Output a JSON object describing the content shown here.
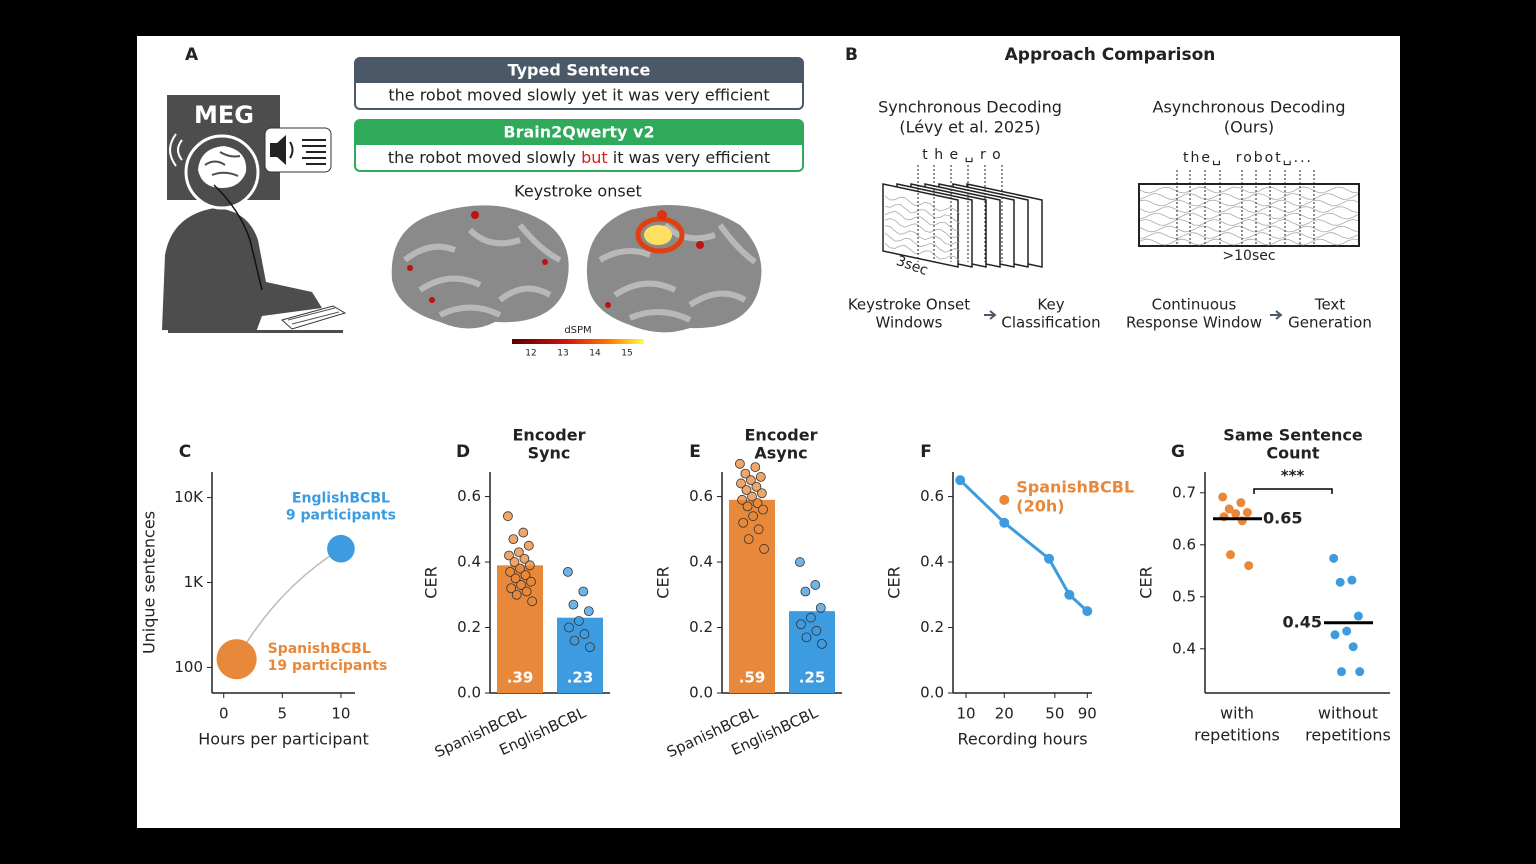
{
  "panel_a": {
    "label": "A",
    "meg_label": "MEG",
    "typed": {
      "title": "Typed Sentence",
      "text": "the robot moved slowly yet it was very efficient"
    },
    "decoded": {
      "title": "Brain2Qwerty v2",
      "text_before": "the robot moved slowly ",
      "error": "but",
      "text_after": " it was very efficient"
    },
    "brain_title": "Keystroke onset",
    "colorbar": {
      "label": "dSPM",
      "ticks": [
        12,
        13,
        14,
        15
      ]
    }
  },
  "panel_b": {
    "label": "B",
    "title": "Approach Comparison",
    "sync": {
      "title": "Synchronous Decoding",
      "subtitle": "(Lévy et al. 2025)",
      "keys": "t h e ␣ r o",
      "window": "3sec",
      "steps": [
        [
          "Keystroke Onset",
          "Windows"
        ],
        [
          "Key",
          "Classification"
        ]
      ]
    },
    "async": {
      "title": "Asynchronous Decoding",
      "subtitle": "(Ours)",
      "keys": "the␣  robot␣...",
      "window": ">10sec",
      "steps": [
        [
          "Continuous",
          "Response Window"
        ],
        [
          "Text",
          "Generation"
        ]
      ]
    }
  },
  "chart_data": [
    {
      "type": "scatter",
      "panel": "C",
      "xlabel": "Hours per participant",
      "ylabel": "Unique sentences",
      "yscale": "log",
      "xlim": [
        -1,
        11.2
      ],
      "ylim": [
        50,
        20000
      ],
      "xticks": [
        0,
        5,
        10
      ],
      "yticks": [
        100,
        {
          "value": 1000,
          "label": "1K"
        },
        {
          "value": 10000,
          "label": "10K"
        }
      ],
      "series": [
        {
          "name": "SpanishBCBL",
          "label": "19 participants",
          "color": "#e8883a",
          "x": [
            1.1
          ],
          "values": [
            125
          ],
          "sizes": [
            19
          ]
        },
        {
          "name": "EnglishBCBL",
          "label": "9 participants",
          "color": "#3d9be0",
          "x": [
            10
          ],
          "values": [
            2500
          ],
          "sizes": [
            9
          ]
        }
      ]
    },
    {
      "type": "bar",
      "panel": "D",
      "title": "Encoder",
      "subtitle": "Sync",
      "ylabel": "CER",
      "ylim": [
        0,
        0.675
      ],
      "yticks": [
        {
          "value": 0,
          "label": "0.0"
        },
        0.2,
        0.4,
        0.6
      ],
      "categories": [
        "SpanishBCBL",
        "EnglishBCBL"
      ],
      "values": [
        0.39,
        0.23
      ],
      "value_labels": [
        ".39",
        ".23"
      ],
      "colors": [
        "#e8883a",
        "#3d9be0"
      ],
      "points": [
        [
          0.54,
          0.49,
          0.47,
          0.45,
          0.43,
          0.42,
          0.41,
          0.4,
          0.39,
          0.38,
          0.37,
          0.36,
          0.35,
          0.34,
          0.33,
          0.32,
          0.31,
          0.3,
          0.28
        ],
        [
          0.37,
          0.31,
          0.27,
          0.25,
          0.22,
          0.2,
          0.18,
          0.16,
          0.14
        ]
      ]
    },
    {
      "type": "bar",
      "panel": "E",
      "title": "Encoder",
      "subtitle": "Async",
      "ylabel": "CER",
      "ylim": [
        0,
        0.675
      ],
      "yticks": [
        {
          "value": 0,
          "label": "0.0"
        },
        0.2,
        0.4,
        0.6
      ],
      "categories": [
        "SpanishBCBL",
        "EnglishBCBL"
      ],
      "values": [
        0.59,
        0.25
      ],
      "value_labels": [
        ".59",
        ".25"
      ],
      "colors": [
        "#e8883a",
        "#3d9be0"
      ],
      "points": [
        [
          0.7,
          0.69,
          0.67,
          0.66,
          0.65,
          0.64,
          0.63,
          0.62,
          0.61,
          0.6,
          0.59,
          0.58,
          0.57,
          0.56,
          0.54,
          0.52,
          0.5,
          0.47,
          0.44
        ],
        [
          0.4,
          0.33,
          0.31,
          0.26,
          0.23,
          0.21,
          0.19,
          0.17,
          0.15
        ]
      ]
    },
    {
      "type": "line",
      "panel": "F",
      "xlabel": "Recording hours",
      "ylabel": "CER",
      "xscale": "log",
      "xlim": [
        7.9,
        98
      ],
      "ylim": [
        0,
        0.675
      ],
      "xticks": [
        10,
        20,
        50,
        90
      ],
      "yticks": [
        {
          "value": 0,
          "label": "0.0"
        },
        0.2,
        0.4,
        0.6
      ],
      "series": [
        {
          "color": "#3d9be0",
          "x": [
            9,
            20,
            45,
            65,
            90
          ],
          "values": [
            0.65,
            0.52,
            0.41,
            0.3,
            0.25
          ]
        },
        {
          "name": "SpanishBCBL",
          "label": "(20h)",
          "color": "#e8883a",
          "x": [
            20
          ],
          "values": [
            0.59
          ],
          "errors": [
            0.015
          ]
        }
      ]
    },
    {
      "type": "strip",
      "panel": "G",
      "title": "Same Sentence",
      "subtitle": "Count",
      "ylabel": "CER",
      "ylim": [
        0.315,
        0.74
      ],
      "yticks": [
        0.4,
        0.5,
        0.6,
        0.7
      ],
      "categories": [
        [
          "with",
          "repetitions"
        ],
        [
          "without",
          "repetitions"
        ]
      ],
      "colors": [
        "#e8883a",
        "#3d9be0"
      ],
      "means": [
        0.65,
        0.45
      ],
      "significance": "***",
      "points": [
        [
          0.692,
          0.681,
          0.669,
          0.662,
          0.66,
          0.654,
          0.646,
          0.581,
          0.56
        ],
        [
          0.574,
          0.532,
          0.528,
          0.463,
          0.434,
          0.427,
          0.404,
          0.356,
          0.356
        ]
      ]
    }
  ]
}
